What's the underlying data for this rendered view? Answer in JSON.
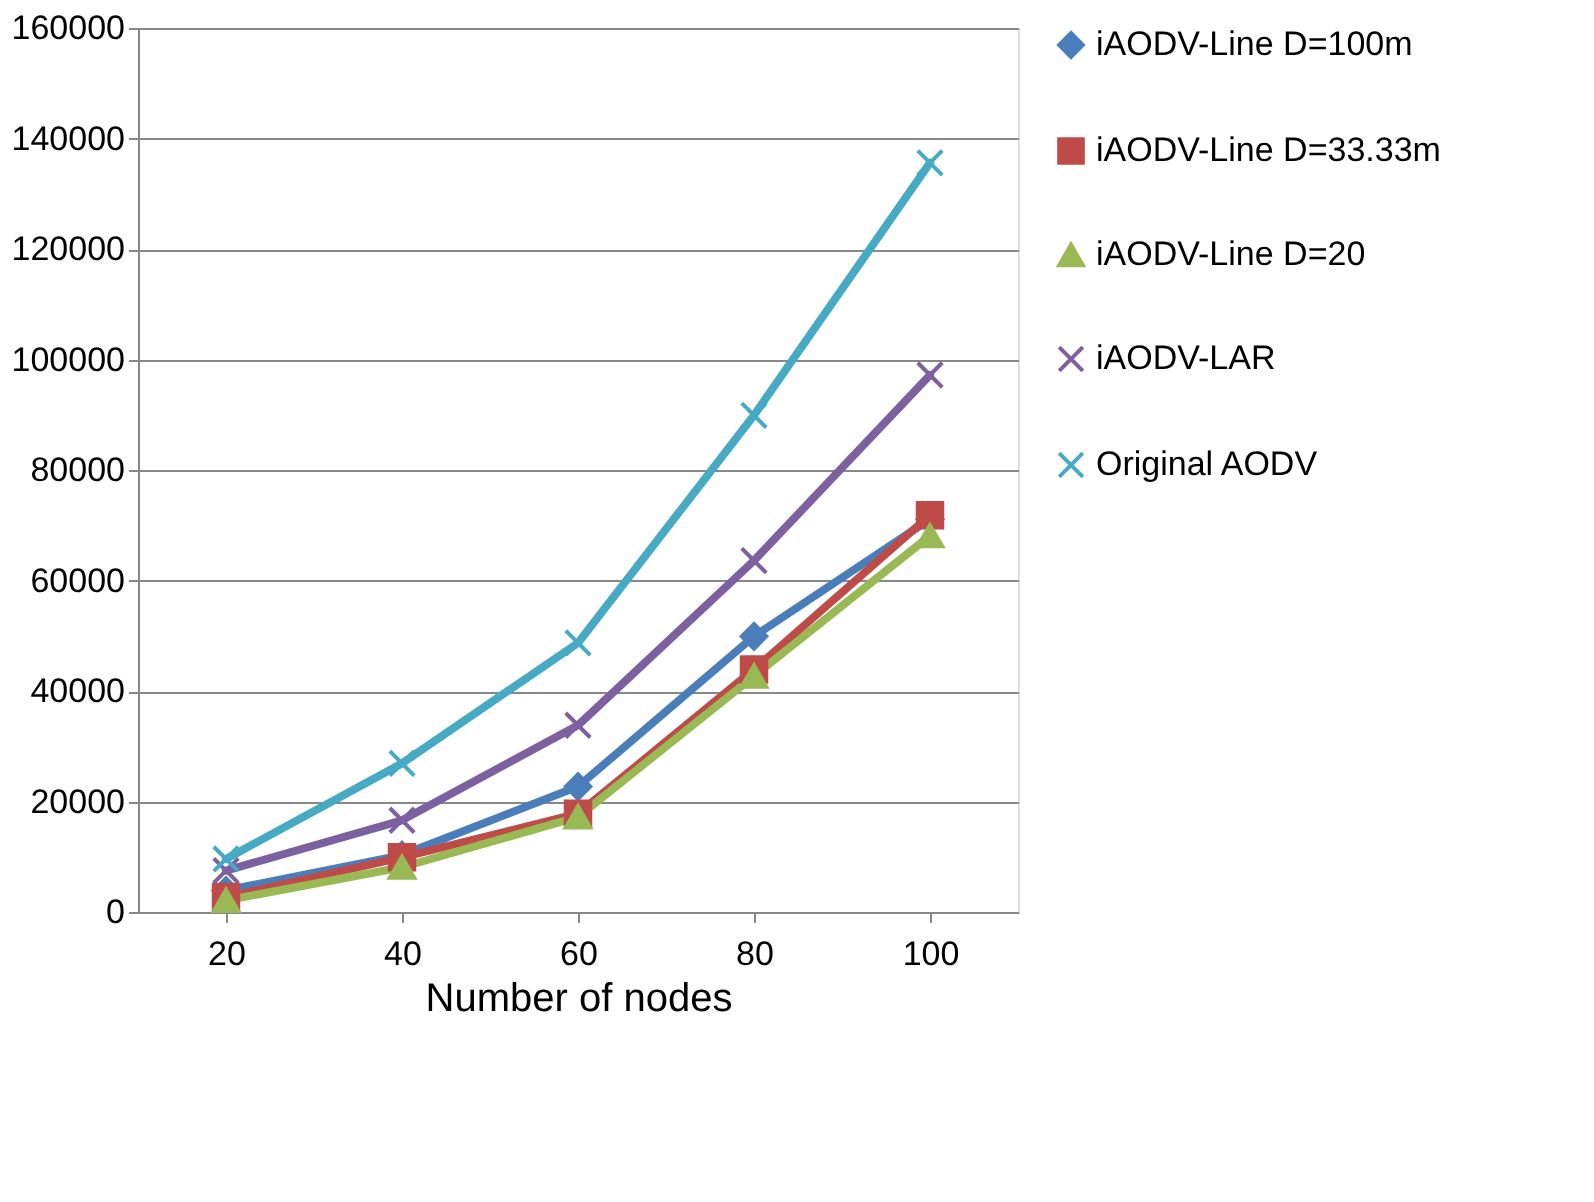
{
  "chart_data": {
    "type": "line",
    "xlabel": "Number  of nodes",
    "categories": [
      "20",
      "40",
      "60",
      "80",
      "100"
    ],
    "ylim": [
      0,
      160000
    ],
    "yticks": [
      0,
      20000,
      40000,
      60000,
      80000,
      100000,
      120000,
      140000,
      160000
    ],
    "grid": "y",
    "legend": "right",
    "series": [
      {
        "name": "iAODV-Line D=100m",
        "color": "#4a7ebb",
        "marker": "diamond",
        "values": [
          3900,
          10300,
          22700,
          49900,
          71100
        ]
      },
      {
        "name": "iAODV-Line D=33.33m",
        "color": "#be4b48",
        "marker": "square",
        "values": [
          2700,
          9900,
          17800,
          43900,
          71800
        ]
      },
      {
        "name": "iAODV-Line D=20",
        "color": "#98b954",
        "marker": "triangle",
        "values": [
          2100,
          8100,
          17200,
          42700,
          68100
        ]
      },
      {
        "name": "iAODV-LAR",
        "color": "#7d60a0",
        "marker": "cross",
        "values": [
          7500,
          16600,
          33800,
          63600,
          97200
        ]
      },
      {
        "name": "Original AODV",
        "color": "#46aac5",
        "marker": "cross",
        "values": [
          9600,
          26900,
          48700,
          89900,
          135600
        ]
      }
    ]
  }
}
